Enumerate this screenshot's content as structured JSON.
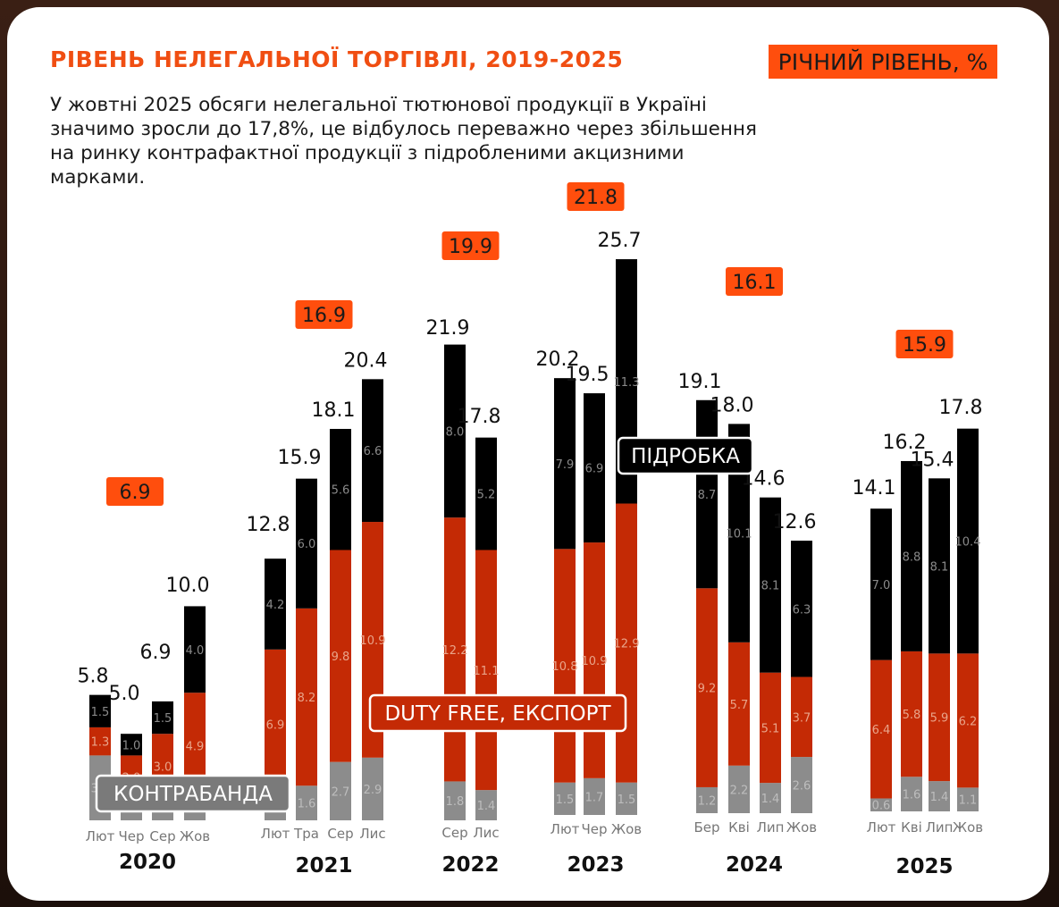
{
  "header": {
    "title": "РІВЕНЬ НЕЛЕГАЛЬНОЇ ТОРГІВЛІ, 2019-2025",
    "legend_badge": "РІЧНИЙ РІВЕНЬ, %",
    "description": "У жовтні 2025 обсяги нелегальної тютюнової продукції в Україні значимо зросли до 17,8%, це відбулось переважно через збільшення на ринку контрафактної продукції з підробленими акцизними марками."
  },
  "colors": {
    "accent": "#ff4e0d",
    "title": "#f04e12",
    "contraband": "#8c8c8c",
    "duty_free_export": "#c42a05",
    "counterfeit": "#000000"
  },
  "chart_data": {
    "type": "bar",
    "stacked": true,
    "series": [
      {
        "name": "КОНТРАБАНДА",
        "key": "contraband"
      },
      {
        "name": "DUTY FREE, ЕКСПОРТ",
        "key": "duty_free_export"
      },
      {
        "name": "ПІДРОБКА",
        "key": "counterfeit"
      }
    ],
    "groups": [
      {
        "year": "2020",
        "annual": "6.9",
        "bars": [
          {
            "month": "Лют",
            "total": "5.8",
            "contraband": "3.0",
            "duty_free_export": "1.3",
            "counterfeit": "1.5"
          },
          {
            "month": "Чер",
            "total": "5.0",
            "contraband": "",
            "duty_free_export": "2.0",
            "counterfeit": "1.0"
          },
          {
            "month": "Сер",
            "total": "6.9",
            "contraband": "",
            "duty_free_export": "3.0",
            "counterfeit": "1.5"
          },
          {
            "month": "Жов",
            "total": "10.0",
            "contraband": "",
            "duty_free_export": "4.9",
            "counterfeit": "4.0"
          }
        ]
      },
      {
        "year": "2021",
        "annual": "16.9",
        "bars": [
          {
            "month": "Лют",
            "total": "12.8",
            "contraband": "",
            "duty_free_export": "6.9",
            "counterfeit": "4.2"
          },
          {
            "month": "Тра",
            "total": "15.9",
            "contraband": "1.6",
            "duty_free_export": "8.2",
            "counterfeit": "6.0"
          },
          {
            "month": "Сер",
            "total": "18.1",
            "contraband": "2.7",
            "duty_free_export": "9.8",
            "counterfeit": "5.6"
          },
          {
            "month": "Лис",
            "total": "20.4",
            "contraband": "2.9",
            "duty_free_export": "10.9",
            "counterfeit": "6.6"
          }
        ]
      },
      {
        "year": "2022",
        "annual": "19.9",
        "bars": [
          {
            "month": "Сер",
            "total": "21.9",
            "contraband": "1.8",
            "duty_free_export": "12.2",
            "counterfeit": "8.0"
          },
          {
            "month": "Лис",
            "total": "17.8",
            "contraband": "1.4",
            "duty_free_export": "11.1",
            "counterfeit": "5.2"
          }
        ]
      },
      {
        "year": "2023",
        "annual": "21.8",
        "bars": [
          {
            "month": "Лют",
            "total": "20.2",
            "contraband": "1.5",
            "duty_free_export": "10.8",
            "counterfeit": "7.9"
          },
          {
            "month": "Чер",
            "total": "19.5",
            "contraband": "1.7",
            "duty_free_export": "10.9",
            "counterfeit": "6.9"
          },
          {
            "month": "Жов",
            "total": "25.7",
            "contraband": "1.5",
            "duty_free_export": "12.9",
            "counterfeit": "11.3"
          }
        ]
      },
      {
        "year": "2024",
        "annual": "16.1",
        "bars": [
          {
            "month": "Бер",
            "total": "19.1",
            "contraband": "1.2",
            "duty_free_export": "9.2",
            "counterfeit": "8.7"
          },
          {
            "month": "Кві",
            "total": "18.0",
            "contraband": "2.2",
            "duty_free_export": "5.7",
            "counterfeit": "10.1"
          },
          {
            "month": "Лип",
            "total": "14.6",
            "contraband": "1.4",
            "duty_free_export": "5.1",
            "counterfeit": "8.1"
          },
          {
            "month": "Жов",
            "total": "12.6",
            "contraband": "2.6",
            "duty_free_export": "3.7",
            "counterfeit": "6.3"
          }
        ]
      },
      {
        "year": "2025",
        "annual": "15.9",
        "bars": [
          {
            "month": "Лют",
            "total": "14.1",
            "contraband": "0.6",
            "duty_free_export": "6.4",
            "counterfeit": "7.0"
          },
          {
            "month": "Кві",
            "total": "16.2",
            "contraband": "1.6",
            "duty_free_export": "5.8",
            "counterfeit": "8.8"
          },
          {
            "month": "Лип",
            "total": "15.4",
            "contraband": "1.4",
            "duty_free_export": "5.9",
            "counterfeit": "8.1"
          },
          {
            "month": "Жов",
            "total": "17.8",
            "contraband": "1.1",
            "duty_free_export": "6.2",
            "counterfeit": "10.4"
          }
        ]
      }
    ]
  }
}
